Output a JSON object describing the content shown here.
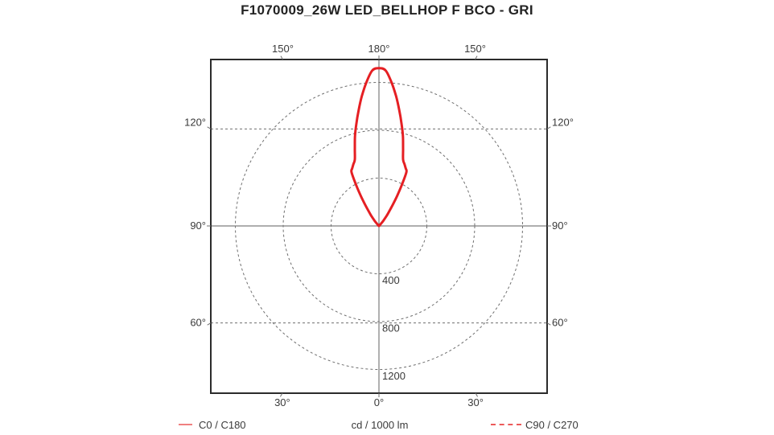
{
  "title": "F1070009_26W LED_BELLHOP F BCO - GRI",
  "legend": {
    "c0_label": "C0 / C180",
    "c90_label": "C90 / C270",
    "unit_label": "cd / 1000 lm"
  },
  "colors": {
    "curve_red": "#e51f23",
    "legend_solid_red": "#f08080",
    "legend_dashed_red": "#ec5a5a",
    "grid_gray": "#6f6f6f",
    "axis_gray": "#7d7d7d",
    "border_dark": "#2b2b2b",
    "text_dark": "#3a3a3a"
  },
  "chart_data": {
    "type": "line",
    "coordinate_system": "polar-photometric",
    "title": "F1070009_26W LED_BELLHOP F BCO - GRI",
    "unit": "cd / 1000 lm",
    "radial_ticks": [
      400,
      800,
      1200
    ],
    "radial_tick_labels": [
      "400",
      "800",
      "1200"
    ],
    "radial_max": 1400,
    "angle_ticks_deg": [
      0,
      30,
      60,
      90,
      120,
      150,
      180
    ],
    "angle_tick_labels": [
      "0°",
      "30°",
      "60°",
      "90°",
      "120°",
      "150°",
      "180°"
    ],
    "angle_labels_mirrored": true,
    "grid": "on",
    "legend_position": "bottom",
    "series": [
      {
        "name": "C0 / C180",
        "style": "solid",
        "points_gamma_cd": [
          [
            0,
            1320
          ],
          [
            2.5,
            1300
          ],
          [
            5,
            1205
          ],
          [
            7.5,
            1095
          ],
          [
            10,
            980
          ],
          [
            12.5,
            873
          ],
          [
            15,
            775
          ],
          [
            17.5,
            670
          ],
          [
            20,
            590
          ],
          [
            22.5,
            558
          ],
          [
            25,
            530
          ],
          [
            27,
            505
          ],
          [
            29,
            400
          ],
          [
            31,
            300
          ],
          [
            33,
            215
          ],
          [
            35,
            150
          ],
          [
            37,
            108
          ],
          [
            40,
            55
          ],
          [
            43,
            22
          ],
          [
            46,
            10
          ],
          [
            50,
            6
          ],
          [
            60,
            3
          ],
          [
            75,
            2
          ],
          [
            90,
            1
          ]
        ]
      },
      {
        "name": "C90 / C270",
        "style": "dashed",
        "points_gamma_cd": [
          [
            0,
            1320
          ],
          [
            2.5,
            1300
          ],
          [
            5,
            1205
          ],
          [
            7.5,
            1095
          ],
          [
            10,
            980
          ],
          [
            12.5,
            873
          ],
          [
            15,
            775
          ],
          [
            17.5,
            670
          ],
          [
            20,
            590
          ],
          [
            22.5,
            558
          ],
          [
            25,
            530
          ],
          [
            27,
            505
          ],
          [
            29,
            400
          ],
          [
            31,
            300
          ],
          [
            33,
            215
          ],
          [
            35,
            150
          ],
          [
            37,
            108
          ],
          [
            40,
            55
          ],
          [
            43,
            22
          ],
          [
            46,
            10
          ],
          [
            50,
            6
          ],
          [
            60,
            3
          ],
          [
            75,
            2
          ],
          [
            90,
            1
          ]
        ]
      }
    ]
  }
}
